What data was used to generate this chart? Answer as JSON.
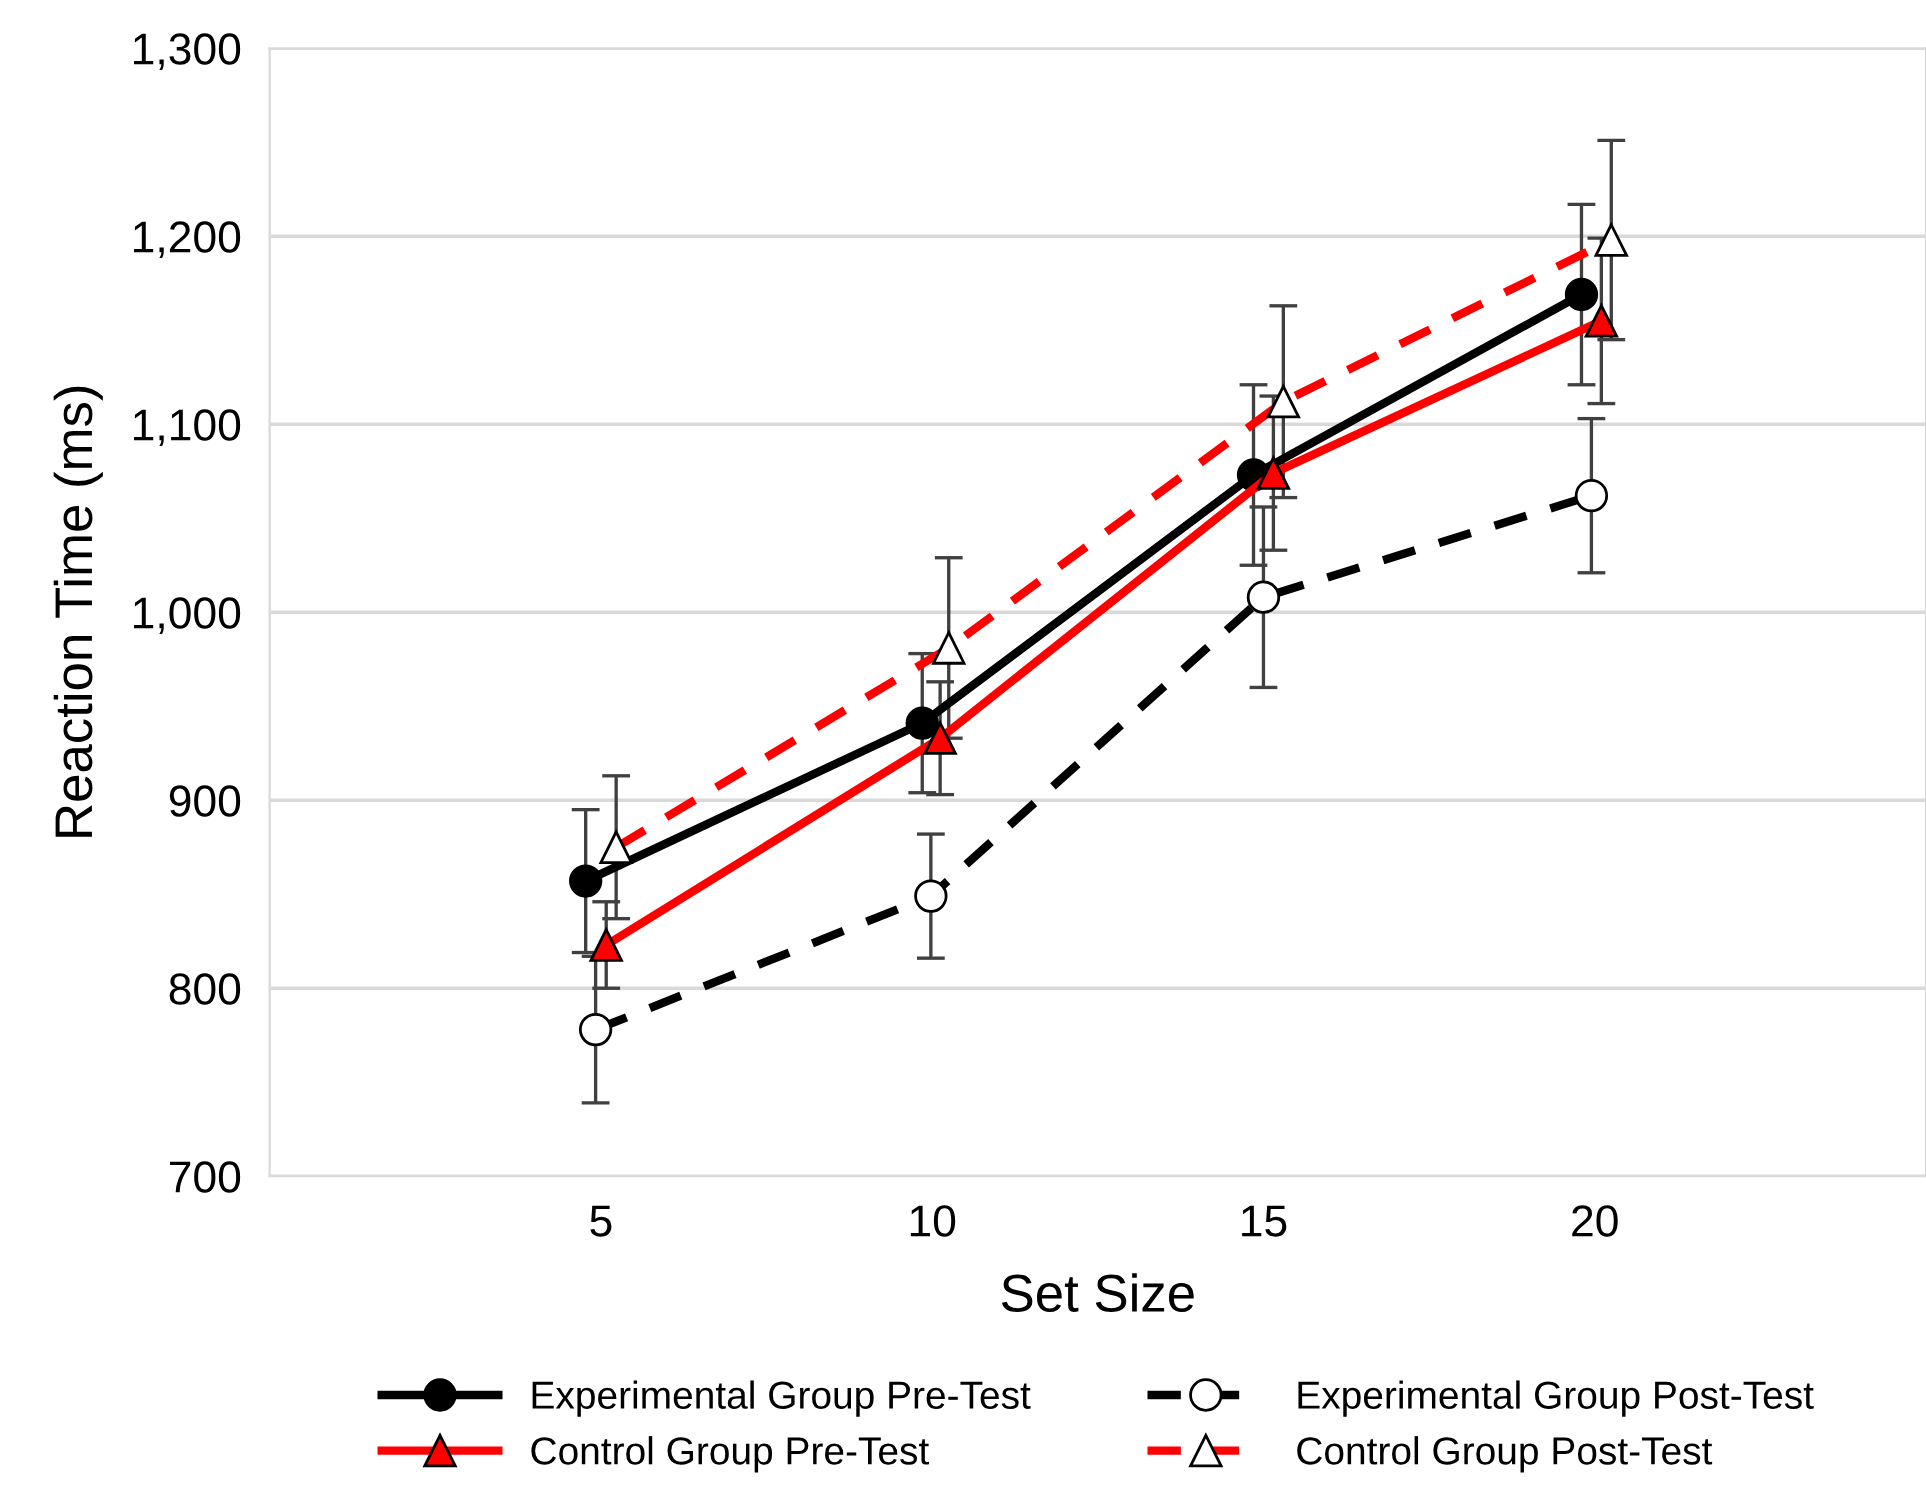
{
  "chart_data": {
    "type": "line",
    "xlabel": "Set Size",
    "ylabel": "Reaction Time (ms)",
    "xlim": [
      0,
      25
    ],
    "xticks": [
      5,
      10,
      15,
      20
    ],
    "ylim": [
      700,
      1300
    ],
    "yticks": [
      {
        "value": 700,
        "label": "700"
      },
      {
        "value": 800,
        "label": "800"
      },
      {
        "value": 900,
        "label": "900"
      },
      {
        "value": 1000,
        "label": "1,000"
      },
      {
        "value": 1100,
        "label": "1,100"
      },
      {
        "value": 1200,
        "label": "1,200"
      },
      {
        "value": 1300,
        "label": "1,300"
      }
    ],
    "grid": "y",
    "legend": "bottom",
    "series": [
      {
        "name": "Experimental Group Pre-Test",
        "color": "#000000",
        "marker": "circle",
        "line_style": "solid",
        "x": [
          4.77,
          9.85,
          14.85,
          19.8
        ],
        "values": [
          857,
          941,
          1073,
          1169
        ],
        "errors": [
          38,
          37,
          48,
          48
        ]
      },
      {
        "name": "Experimental Group Post-Test",
        "color": "#000000",
        "marker": "circle",
        "line_style": "dashed",
        "x": [
          4.92,
          9.98,
          15.0,
          19.95
        ],
        "values": [
          778,
          849,
          1008,
          1062
        ],
        "errors": [
          39,
          33,
          48,
          41
        ]
      },
      {
        "name": "Control Group Pre-Test",
        "color": "#ff0000",
        "marker": "triangle",
        "line_style": "solid",
        "x": [
          5.08,
          10.12,
          15.15,
          20.1
        ],
        "values": [
          823,
          933,
          1074,
          1155
        ],
        "errors": [
          23,
          30,
          41,
          44
        ]
      },
      {
        "name": "Control Group Post-Test",
        "color": "#ff0000",
        "marker": "triangle",
        "line_style": "dashed",
        "x": [
          5.23,
          10.25,
          15.3,
          20.25
        ],
        "values": [
          875,
          981,
          1112,
          1198
        ],
        "errors": [
          38,
          48,
          51,
          53
        ]
      }
    ]
  }
}
